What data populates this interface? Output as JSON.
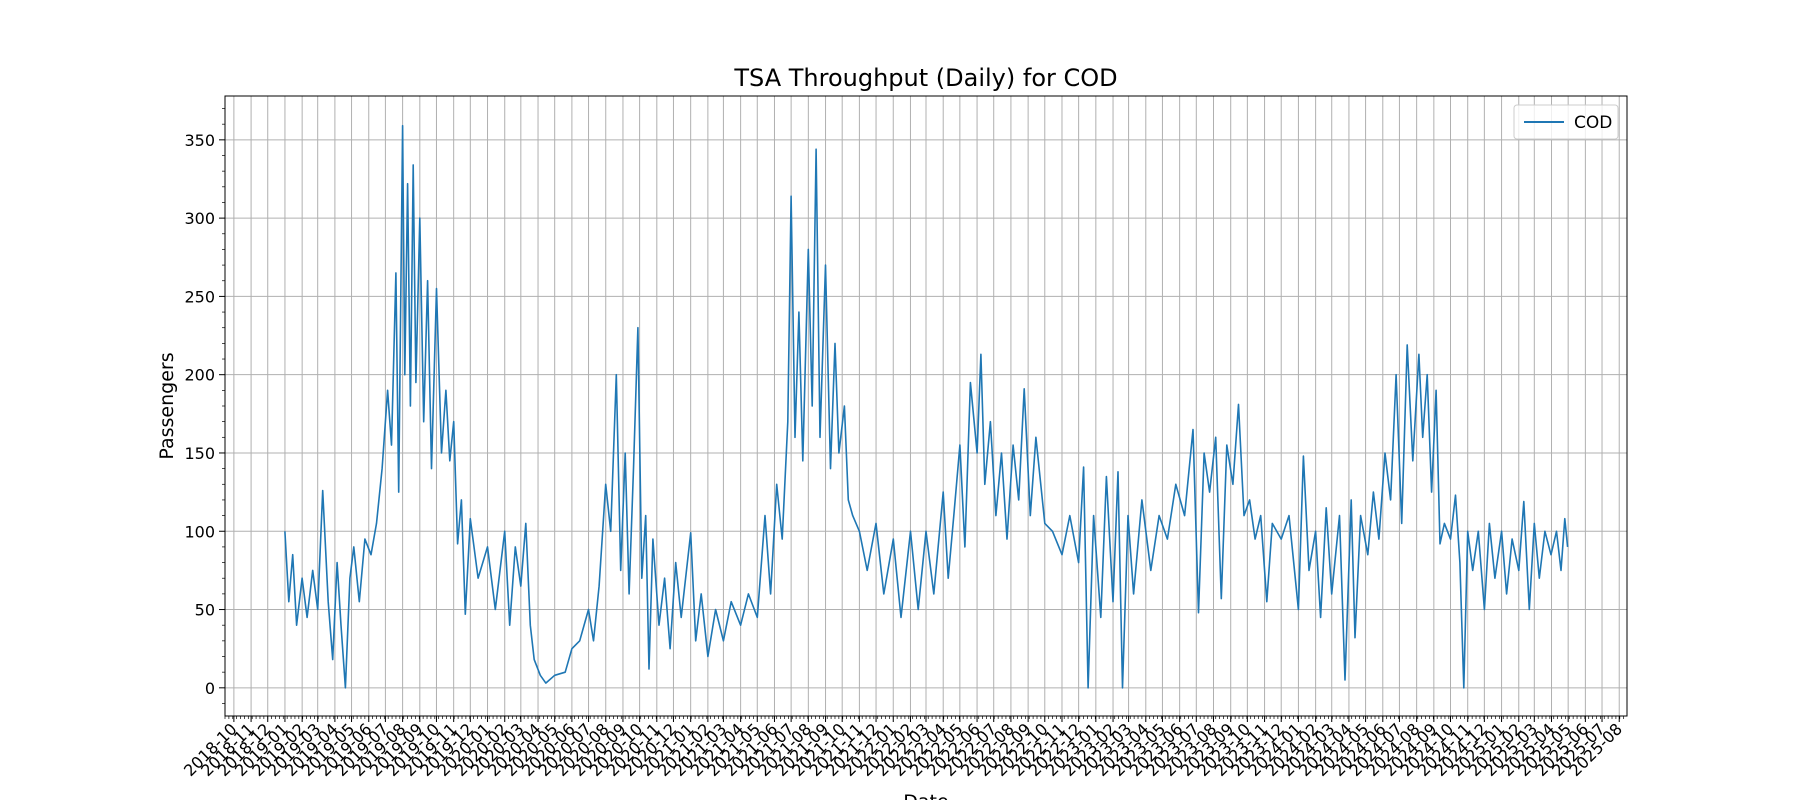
{
  "chart_data": {
    "type": "line",
    "title": "TSA Throughput (Daily) for COD",
    "xlabel": "Date",
    "ylabel": "Passengers",
    "ylim": [
      -18,
      378
    ],
    "xlim": [
      "2018-09-15",
      "2025-08-15"
    ],
    "grid": true,
    "legend": "top-right",
    "color": "#1f77b4",
    "y_ticks": [
      0,
      50,
      100,
      150,
      200,
      250,
      300,
      350
    ],
    "x_tick_labels": [
      "2018-10",
      "2018-11",
      "2018-12",
      "2019-01",
      "2019-02",
      "2019-03",
      "2019-04",
      "2019-05",
      "2019-06",
      "2019-07",
      "2019-08",
      "2019-09",
      "2019-10",
      "2019-11",
      "2019-12",
      "2020-01",
      "2020-02",
      "2020-03",
      "2020-04",
      "2020-05",
      "2020-06",
      "2020-07",
      "2020-08",
      "2020-09",
      "2020-10",
      "2020-11",
      "2020-12",
      "2021-01",
      "2021-02",
      "2021-03",
      "2021-04",
      "2021-05",
      "2021-06",
      "2021-07",
      "2021-08",
      "2021-09",
      "2021-10",
      "2021-11",
      "2021-12",
      "2022-01",
      "2022-02",
      "2022-03",
      "2022-04",
      "2022-05",
      "2022-06",
      "2022-07",
      "2022-08",
      "2022-09",
      "2022-10",
      "2022-11",
      "2022-12",
      "2023-01",
      "2023-02",
      "2023-03",
      "2023-04",
      "2023-05",
      "2023-06",
      "2023-07",
      "2023-08",
      "2023-09",
      "2023-10",
      "2023-11",
      "2023-12",
      "2024-01",
      "2024-02",
      "2024-03",
      "2024-04",
      "2024-05",
      "2024-06",
      "2024-07",
      "2024-08",
      "2024-09",
      "2024-10",
      "2024-11",
      "2024-12",
      "2025-01",
      "2025-02",
      "2025-03",
      "2025-04",
      "2025-05",
      "2025-06",
      "2025-07",
      "2025-08"
    ],
    "series": [
      {
        "name": "COD",
        "points": [
          [
            "2019-01-01",
            100
          ],
          [
            "2019-01-08",
            55
          ],
          [
            "2019-01-15",
            85
          ],
          [
            "2019-01-22",
            40
          ],
          [
            "2019-02-01",
            70
          ],
          [
            "2019-02-10",
            45
          ],
          [
            "2019-02-20",
            75
          ],
          [
            "2019-03-01",
            50
          ],
          [
            "2019-03-10",
            126
          ],
          [
            "2019-03-20",
            55
          ],
          [
            "2019-03-28",
            18
          ],
          [
            "2019-04-05",
            80
          ],
          [
            "2019-04-12",
            40
          ],
          [
            "2019-04-20",
            0
          ],
          [
            "2019-04-28",
            70
          ],
          [
            "2019-05-05",
            90
          ],
          [
            "2019-05-15",
            55
          ],
          [
            "2019-05-25",
            95
          ],
          [
            "2019-06-05",
            85
          ],
          [
            "2019-06-15",
            105
          ],
          [
            "2019-06-25",
            140
          ],
          [
            "2019-07-05",
            190
          ],
          [
            "2019-07-12",
            155
          ],
          [
            "2019-07-20",
            265
          ],
          [
            "2019-07-25",
            125
          ],
          [
            "2019-08-01",
            359
          ],
          [
            "2019-08-05",
            200
          ],
          [
            "2019-08-10",
            322
          ],
          [
            "2019-08-15",
            180
          ],
          [
            "2019-08-20",
            334
          ],
          [
            "2019-08-25",
            195
          ],
          [
            "2019-09-01",
            300
          ],
          [
            "2019-09-08",
            170
          ],
          [
            "2019-09-15",
            260
          ],
          [
            "2019-09-22",
            140
          ],
          [
            "2019-10-01",
            255
          ],
          [
            "2019-10-10",
            150
          ],
          [
            "2019-10-18",
            190
          ],
          [
            "2019-10-25",
            145
          ],
          [
            "2019-11-01",
            170
          ],
          [
            "2019-11-08",
            92
          ],
          [
            "2019-11-15",
            120
          ],
          [
            "2019-11-22",
            47
          ],
          [
            "2019-12-01",
            108
          ],
          [
            "2019-12-15",
            70
          ],
          [
            "2020-01-01",
            90
          ],
          [
            "2020-01-15",
            50
          ],
          [
            "2020-02-01",
            100
          ],
          [
            "2020-02-10",
            40
          ],
          [
            "2020-02-20",
            90
          ],
          [
            "2020-03-01",
            65
          ],
          [
            "2020-03-10",
            105
          ],
          [
            "2020-03-18",
            40
          ],
          [
            "2020-03-25",
            18
          ],
          [
            "2020-04-05",
            8
          ],
          [
            "2020-04-15",
            3
          ],
          [
            "2020-05-01",
            8
          ],
          [
            "2020-05-20",
            10
          ],
          [
            "2020-06-01",
            25
          ],
          [
            "2020-06-15",
            30
          ],
          [
            "2020-07-01",
            50
          ],
          [
            "2020-07-10",
            30
          ],
          [
            "2020-07-20",
            65
          ],
          [
            "2020-08-01",
            130
          ],
          [
            "2020-08-10",
            100
          ],
          [
            "2020-08-20",
            200
          ],
          [
            "2020-08-28",
            75
          ],
          [
            "2020-09-05",
            150
          ],
          [
            "2020-09-12",
            60
          ],
          [
            "2020-09-20",
            140
          ],
          [
            "2020-09-28",
            230
          ],
          [
            "2020-10-05",
            70
          ],
          [
            "2020-10-12",
            110
          ],
          [
            "2020-10-18",
            12
          ],
          [
            "2020-10-25",
            95
          ],
          [
            "2020-11-05",
            40
          ],
          [
            "2020-11-15",
            70
          ],
          [
            "2020-11-25",
            25
          ],
          [
            "2020-12-05",
            80
          ],
          [
            "2020-12-15",
            45
          ],
          [
            "2021-01-01",
            99
          ],
          [
            "2021-01-10",
            30
          ],
          [
            "2021-01-20",
            60
          ],
          [
            "2021-02-01",
            20
          ],
          [
            "2021-02-15",
            50
          ],
          [
            "2021-03-01",
            30
          ],
          [
            "2021-03-15",
            55
          ],
          [
            "2021-04-01",
            40
          ],
          [
            "2021-04-15",
            60
          ],
          [
            "2021-05-01",
            45
          ],
          [
            "2021-05-15",
            110
          ],
          [
            "2021-05-25",
            60
          ],
          [
            "2021-06-05",
            130
          ],
          [
            "2021-06-15",
            95
          ],
          [
            "2021-06-25",
            170
          ],
          [
            "2021-07-01",
            314
          ],
          [
            "2021-07-08",
            160
          ],
          [
            "2021-07-15",
            240
          ],
          [
            "2021-07-22",
            145
          ],
          [
            "2021-08-01",
            280
          ],
          [
            "2021-08-08",
            180
          ],
          [
            "2021-08-15",
            344
          ],
          [
            "2021-08-22",
            160
          ],
          [
            "2021-09-01",
            270
          ],
          [
            "2021-09-10",
            140
          ],
          [
            "2021-09-18",
            220
          ],
          [
            "2021-09-25",
            150
          ],
          [
            "2021-10-05",
            180
          ],
          [
            "2021-10-12",
            120
          ],
          [
            "2021-10-20",
            110
          ],
          [
            "2021-11-01",
            100
          ],
          [
            "2021-11-15",
            75
          ],
          [
            "2021-12-01",
            105
          ],
          [
            "2021-12-15",
            60
          ],
          [
            "2022-01-01",
            95
          ],
          [
            "2022-01-15",
            45
          ],
          [
            "2022-02-01",
            100
          ],
          [
            "2022-02-15",
            50
          ],
          [
            "2022-03-01",
            100
          ],
          [
            "2022-03-15",
            60
          ],
          [
            "2022-04-01",
            125
          ],
          [
            "2022-04-10",
            70
          ],
          [
            "2022-04-20",
            110
          ],
          [
            "2022-05-01",
            155
          ],
          [
            "2022-05-10",
            90
          ],
          [
            "2022-05-20",
            195
          ],
          [
            "2022-06-01",
            150
          ],
          [
            "2022-06-08",
            213
          ],
          [
            "2022-06-15",
            130
          ],
          [
            "2022-06-25",
            170
          ],
          [
            "2022-07-05",
            110
          ],
          [
            "2022-07-15",
            150
          ],
          [
            "2022-07-25",
            95
          ],
          [
            "2022-08-05",
            155
          ],
          [
            "2022-08-15",
            120
          ],
          [
            "2022-08-25",
            191
          ],
          [
            "2022-09-05",
            110
          ],
          [
            "2022-09-15",
            160
          ],
          [
            "2022-10-01",
            105
          ],
          [
            "2022-10-15",
            100
          ],
          [
            "2022-11-01",
            85
          ],
          [
            "2022-11-15",
            110
          ],
          [
            "2022-12-01",
            80
          ],
          [
            "2022-12-10",
            141
          ],
          [
            "2022-12-18",
            0
          ],
          [
            "2022-12-28",
            110
          ],
          [
            "2023-01-10",
            45
          ],
          [
            "2023-01-20",
            135
          ],
          [
            "2023-02-01",
            55
          ],
          [
            "2023-02-10",
            138
          ],
          [
            "2023-02-18",
            0
          ],
          [
            "2023-02-28",
            110
          ],
          [
            "2023-03-10",
            60
          ],
          [
            "2023-03-25",
            120
          ],
          [
            "2023-04-10",
            75
          ],
          [
            "2023-04-25",
            110
          ],
          [
            "2023-05-10",
            95
          ],
          [
            "2023-05-25",
            130
          ],
          [
            "2023-06-10",
            110
          ],
          [
            "2023-06-25",
            165
          ],
          [
            "2023-07-05",
            48
          ],
          [
            "2023-07-15",
            150
          ],
          [
            "2023-07-25",
            125
          ],
          [
            "2023-08-05",
            160
          ],
          [
            "2023-08-15",
            57
          ],
          [
            "2023-08-25",
            155
          ],
          [
            "2023-09-05",
            130
          ],
          [
            "2023-09-15",
            181
          ],
          [
            "2023-09-25",
            110
          ],
          [
            "2023-10-05",
            120
          ],
          [
            "2023-10-15",
            95
          ],
          [
            "2023-10-25",
            110
          ],
          [
            "2023-11-05",
            55
          ],
          [
            "2023-11-15",
            105
          ],
          [
            "2023-12-01",
            95
          ],
          [
            "2023-12-15",
            110
          ],
          [
            "2024-01-01",
            50
          ],
          [
            "2024-01-10",
            148
          ],
          [
            "2024-01-20",
            75
          ],
          [
            "2024-02-01",
            100
          ],
          [
            "2024-02-10",
            45
          ],
          [
            "2024-02-20",
            115
          ],
          [
            "2024-03-01",
            60
          ],
          [
            "2024-03-15",
            110
          ],
          [
            "2024-03-25",
            5
          ],
          [
            "2024-04-05",
            120
          ],
          [
            "2024-04-12",
            32
          ],
          [
            "2024-04-22",
            110
          ],
          [
            "2024-05-05",
            85
          ],
          [
            "2024-05-15",
            125
          ],
          [
            "2024-05-25",
            95
          ],
          [
            "2024-06-05",
            150
          ],
          [
            "2024-06-15",
            120
          ],
          [
            "2024-06-25",
            200
          ],
          [
            "2024-07-05",
            105
          ],
          [
            "2024-07-15",
            219
          ],
          [
            "2024-07-25",
            145
          ],
          [
            "2024-08-05",
            213
          ],
          [
            "2024-08-12",
            160
          ],
          [
            "2024-08-20",
            200
          ],
          [
            "2024-08-28",
            125
          ],
          [
            "2024-09-05",
            190
          ],
          [
            "2024-09-12",
            92
          ],
          [
            "2024-09-20",
            105
          ],
          [
            "2024-10-01",
            95
          ],
          [
            "2024-10-10",
            123
          ],
          [
            "2024-10-18",
            80
          ],
          [
            "2024-10-25",
            0
          ],
          [
            "2024-11-01",
            100
          ],
          [
            "2024-11-10",
            75
          ],
          [
            "2024-11-20",
            100
          ],
          [
            "2024-12-01",
            50
          ],
          [
            "2024-12-10",
            105
          ],
          [
            "2024-12-20",
            70
          ],
          [
            "2025-01-01",
            100
          ],
          [
            "2025-01-10",
            60
          ],
          [
            "2025-01-20",
            95
          ],
          [
            "2025-02-01",
            75
          ],
          [
            "2025-02-10",
            119
          ],
          [
            "2025-02-20",
            50
          ],
          [
            "2025-03-01",
            105
          ],
          [
            "2025-03-10",
            70
          ],
          [
            "2025-03-20",
            100
          ],
          [
            "2025-03-31",
            85
          ],
          [
            "2025-04-10",
            100
          ],
          [
            "2025-04-18",
            75
          ],
          [
            "2025-04-25",
            108
          ],
          [
            "2025-04-30",
            90
          ]
        ]
      }
    ]
  }
}
